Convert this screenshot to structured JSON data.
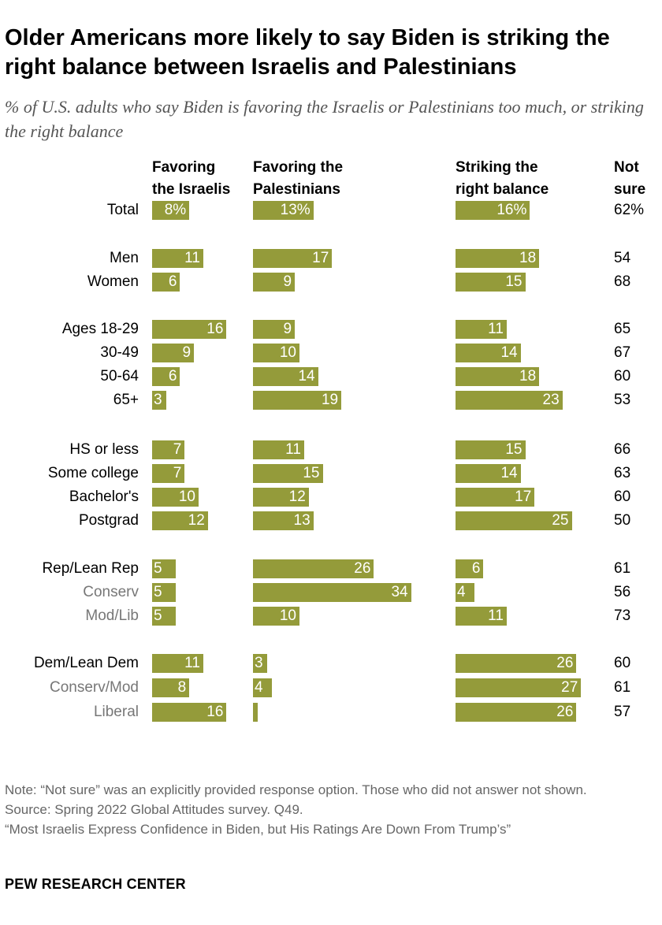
{
  "title": "Older Americans more likely to say Biden is striking the right balance between Israelis and Palestinians",
  "subtitle": "% of U.S. adults who say Biden is favoring the Israelis or Palestinians too much, or striking the right balance",
  "columns": {
    "israelis": [
      "Favoring",
      "the Israelis"
    ],
    "palestinians": [
      "Favoring the",
      "Palestinians"
    ],
    "balance": [
      "Striking the",
      "right balance"
    ],
    "notsure": [
      "Not",
      "sure"
    ]
  },
  "colors": {
    "bar": "#949b3a",
    "value_text": "#ffffff",
    "muted_label": "#777777"
  },
  "chart_data": {
    "type": "bar",
    "orientation": "horizontal",
    "series_names": [
      "Favoring the Israelis",
      "Favoring the Palestinians",
      "Striking the right balance",
      "Not sure"
    ],
    "rows": [
      {
        "label": "Total",
        "israelis": 8,
        "palestinians": 13,
        "balance": 16,
        "notsure": 62,
        "israelis_text": "8%",
        "palestinians_text": "13%",
        "balance_text": "16%",
        "notsure_text": "62%",
        "muted": false
      },
      {
        "label": "Men",
        "israelis": 11,
        "palestinians": 17,
        "balance": 18,
        "notsure": 54,
        "israelis_text": "11",
        "palestinians_text": "17",
        "balance_text": "18",
        "notsure_text": "54",
        "muted": false
      },
      {
        "label": "Women",
        "israelis": 6,
        "palestinians": 9,
        "balance": 15,
        "notsure": 68,
        "israelis_text": "6",
        "palestinians_text": "9",
        "balance_text": "15",
        "notsure_text": "68",
        "muted": false
      },
      {
        "label": "Ages 18-29",
        "israelis": 16,
        "palestinians": 9,
        "balance": 11,
        "notsure": 65,
        "israelis_text": "16",
        "palestinians_text": "9",
        "balance_text": "11",
        "notsure_text": "65",
        "muted": false
      },
      {
        "label": "30-49",
        "israelis": 9,
        "palestinians": 10,
        "balance": 14,
        "notsure": 67,
        "israelis_text": "9",
        "palestinians_text": "10",
        "balance_text": "14",
        "notsure_text": "67",
        "muted": false
      },
      {
        "label": "50-64",
        "israelis": 6,
        "palestinians": 14,
        "balance": 18,
        "notsure": 60,
        "israelis_text": "6",
        "palestinians_text": "14",
        "balance_text": "18",
        "notsure_text": "60",
        "muted": false
      },
      {
        "label": "65+",
        "israelis": 3,
        "palestinians": 19,
        "balance": 23,
        "notsure": 53,
        "israelis_text": "3",
        "palestinians_text": "19",
        "balance_text": "23",
        "notsure_text": "53",
        "muted": false
      },
      {
        "label": "HS or less",
        "israelis": 7,
        "palestinians": 11,
        "balance": 15,
        "notsure": 66,
        "israelis_text": "7",
        "palestinians_text": "11",
        "balance_text": "15",
        "notsure_text": "66",
        "muted": false
      },
      {
        "label": "Some college",
        "israelis": 7,
        "palestinians": 15,
        "balance": 14,
        "notsure": 63,
        "israelis_text": "7",
        "palestinians_text": "15",
        "balance_text": "14",
        "notsure_text": "63",
        "muted": false
      },
      {
        "label": "Bachelor's",
        "israelis": 10,
        "palestinians": 12,
        "balance": 17,
        "notsure": 60,
        "israelis_text": "10",
        "palestinians_text": "12",
        "balance_text": "17",
        "notsure_text": "60",
        "muted": false
      },
      {
        "label": "Postgrad",
        "israelis": 12,
        "palestinians": 13,
        "balance": 25,
        "notsure": 50,
        "israelis_text": "12",
        "palestinians_text": "13",
        "balance_text": "25",
        "notsure_text": "50",
        "muted": false
      },
      {
        "label": "Rep/Lean Rep",
        "israelis": 5,
        "palestinians": 26,
        "balance": 6,
        "notsure": 61,
        "israelis_text": "5",
        "palestinians_text": "26",
        "balance_text": "6",
        "notsure_text": "61",
        "muted": false
      },
      {
        "label": "Conserv",
        "israelis": 5,
        "palestinians": 34,
        "balance": 4,
        "notsure": 56,
        "israelis_text": "5",
        "palestinians_text": "34",
        "balance_text": "4",
        "notsure_text": "56",
        "muted": true
      },
      {
        "label": "Mod/Lib",
        "israelis": 5,
        "palestinians": 10,
        "balance": 11,
        "notsure": 73,
        "israelis_text": "5",
        "palestinians_text": "10",
        "balance_text": "11",
        "notsure_text": "73",
        "muted": true
      },
      {
        "label": "Dem/Lean Dem",
        "israelis": 11,
        "palestinians": 3,
        "balance": 26,
        "notsure": 60,
        "israelis_text": "11",
        "palestinians_text": "3",
        "balance_text": "26",
        "notsure_text": "60",
        "muted": false
      },
      {
        "label": "Conserv/Mod",
        "israelis": 8,
        "palestinians": 4,
        "balance": 27,
        "notsure": 61,
        "israelis_text": "8",
        "palestinians_text": "4",
        "balance_text": "27",
        "notsure_text": "61",
        "muted": true
      },
      {
        "label": "Liberal",
        "israelis": 16,
        "palestinians": 1,
        "balance": 26,
        "notsure": 57,
        "israelis_text": "16",
        "palestinians_text": "",
        "balance_text": "26",
        "notsure_text": "57",
        "muted": true
      }
    ]
  },
  "footnotes": {
    "note": "Note: “Not sure” was an explicitly provided response option. Those who did not answer not shown.",
    "source": "Source: Spring 2022 Global Attitudes survey. Q49.",
    "report": "“Most Israelis Express Confidence in Biden, but His Ratings Are Down From Trump’s”"
  },
  "logo": "PEW RESEARCH CENTER"
}
